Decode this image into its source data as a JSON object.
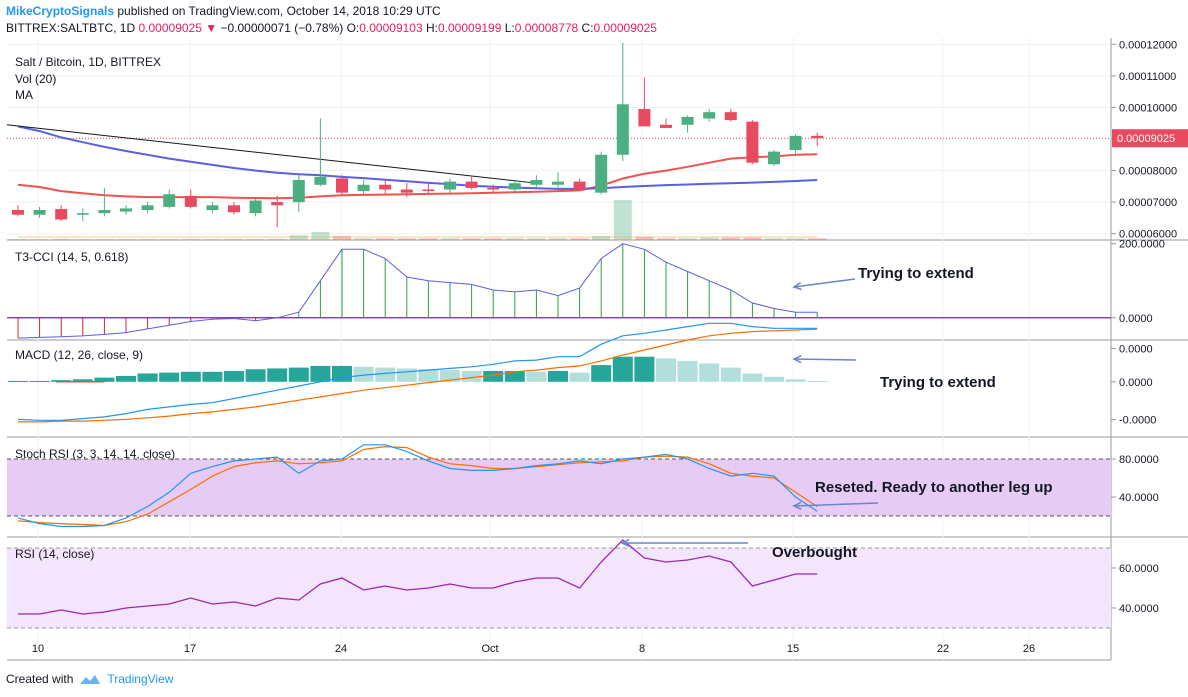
{
  "header": {
    "author": "MikeCryptoSignals",
    "published": "published on TradingView.com, October 14, 2018 10:29 UTC",
    "symbol": "BITTREX:SALTBTC, 1D",
    "last": "0.00009025",
    "change": "−0.00000071 (−0.78%)",
    "o_label": "O:",
    "o": "0.00009103",
    "h_label": "H:",
    "h": "0.00009199",
    "l_label": "L:",
    "l": "0.00008778",
    "c_label": "C:",
    "c": "0.00009025"
  },
  "footer": {
    "created_with": "Created with",
    "brand": "TradingView"
  },
  "colors": {
    "up": "#4caf82",
    "down": "#e84a5f",
    "ma_red": "#ef5350",
    "ma_blue": "#5b5fe0",
    "accent": "#2196f3"
  },
  "x_axis_labels": [
    "10",
    "17",
    "24",
    "Oct",
    "8",
    "15",
    "22",
    "26"
  ],
  "annotations": [
    {
      "text": "Trying to extend"
    },
    {
      "text": "Trying to extend"
    },
    {
      "text": "Reseted. Ready to another leg up"
    },
    {
      "text": "Overbought"
    }
  ],
  "chart_data": [
    {
      "type": "candlestick",
      "title": "Salt / Bitcoin, 1D, BITTREX",
      "indicators": [
        "Vol (20)",
        "MA"
      ],
      "ylim": [
        5.8e-05,
        0.000122
      ],
      "y_ticks": [
        "0.00012000",
        "0.00011000",
        "0.00010000",
        "0.00009000",
        "0.00008000",
        "0.00007000",
        "0.00006000"
      ],
      "last_price_label": "0.00009025",
      "candles": [
        {
          "o": 6.75e-05,
          "h": 6.9e-05,
          "l": 6.55e-05,
          "c": 6.6e-05
        },
        {
          "o": 6.6e-05,
          "h": 6.85e-05,
          "l": 6.5e-05,
          "c": 6.75e-05
        },
        {
          "o": 6.78e-05,
          "h": 6.9e-05,
          "l": 6.4e-05,
          "c": 6.45e-05
        },
        {
          "o": 6.6e-05,
          "h": 6.8e-05,
          "l": 6.4e-05,
          "c": 6.65e-05
        },
        {
          "o": 6.65e-05,
          "h": 7.45e-05,
          "l": 6.55e-05,
          "c": 6.75e-05
        },
        {
          "o": 6.7e-05,
          "h": 6.9e-05,
          "l": 6.6e-05,
          "c": 6.8e-05
        },
        {
          "o": 6.75e-05,
          "h": 7e-05,
          "l": 6.65e-05,
          "c": 6.9e-05
        },
        {
          "o": 6.85e-05,
          "h": 7.4e-05,
          "l": 6.8e-05,
          "c": 7.25e-05
        },
        {
          "o": 7.2e-05,
          "h": 7.4e-05,
          "l": 6.8e-05,
          "c": 6.85e-05
        },
        {
          "o": 6.75e-05,
          "h": 7e-05,
          "l": 6.65e-05,
          "c": 6.9e-05
        },
        {
          "o": 6.9e-05,
          "h": 7e-05,
          "l": 6.6e-05,
          "c": 6.68e-05
        },
        {
          "o": 6.65e-05,
          "h": 7.1e-05,
          "l": 6.55e-05,
          "c": 7.05e-05
        },
        {
          "o": 7e-05,
          "h": 7.2e-05,
          "l": 6.2e-05,
          "c": 6.9e-05
        },
        {
          "o": 7e-05,
          "h": 7.85e-05,
          "l": 6.7e-05,
          "c": 7.7e-05
        },
        {
          "o": 7.55e-05,
          "h": 9.65e-05,
          "l": 7.5e-05,
          "c": 7.8e-05
        },
        {
          "o": 7.75e-05,
          "h": 7.85e-05,
          "l": 7.2e-05,
          "c": 7.3e-05
        },
        {
          "o": 7.35e-05,
          "h": 7.7e-05,
          "l": 7.25e-05,
          "c": 7.55e-05
        },
        {
          "o": 7.55e-05,
          "h": 7.7e-05,
          "l": 7.25e-05,
          "c": 7.4e-05
        },
        {
          "o": 7.4e-05,
          "h": 7.6e-05,
          "l": 7.15e-05,
          "c": 7.3e-05
        },
        {
          "o": 7.4e-05,
          "h": 7.6e-05,
          "l": 7.25e-05,
          "c": 7.35e-05
        },
        {
          "o": 7.4e-05,
          "h": 7.75e-05,
          "l": 7.3e-05,
          "c": 7.65e-05
        },
        {
          "o": 7.65e-05,
          "h": 7.8e-05,
          "l": 7.4e-05,
          "c": 7.45e-05
        },
        {
          "o": 7.45e-05,
          "h": 7.55e-05,
          "l": 7.3e-05,
          "c": 7.4e-05
        },
        {
          "o": 7.4e-05,
          "h": 7.65e-05,
          "l": 7.3e-05,
          "c": 7.6e-05
        },
        {
          "o": 7.55e-05,
          "h": 7.85e-05,
          "l": 7.45e-05,
          "c": 7.7e-05
        },
        {
          "o": 7.55e-05,
          "h": 7.95e-05,
          "l": 7.45e-05,
          "c": 7.65e-05
        },
        {
          "o": 7.65e-05,
          "h": 7.75e-05,
          "l": 7.35e-05,
          "c": 7.4e-05
        },
        {
          "o": 7.3e-05,
          "h": 8.6e-05,
          "l": 7.25e-05,
          "c": 8.5e-05
        },
        {
          "o": 8.5e-05,
          "h": 0.0001205,
          "l": 8.3e-05,
          "c": 0.000101
        },
        {
          "o": 9.95e-05,
          "h": 0.0001095,
          "l": 9.4e-05,
          "c": 9.4e-05
        },
        {
          "o": 9.45e-05,
          "h": 9.65e-05,
          "l": 9.35e-05,
          "c": 9.35e-05
        },
        {
          "o": 9.45e-05,
          "h": 9.75e-05,
          "l": 9.2e-05,
          "c": 9.7e-05
        },
        {
          "o": 9.65e-05,
          "h": 9.95e-05,
          "l": 9.55e-05,
          "c": 9.85e-05
        },
        {
          "o": 9.85e-05,
          "h": 9.95e-05,
          "l": 9.55e-05,
          "c": 9.6e-05
        },
        {
          "o": 9.55e-05,
          "h": 9.6e-05,
          "l": 8.2e-05,
          "c": 8.25e-05
        },
        {
          "o": 8.2e-05,
          "h": 8.65e-05,
          "l": 8.15e-05,
          "c": 8.6e-05
        },
        {
          "o": 8.65e-05,
          "h": 9.15e-05,
          "l": 8.45e-05,
          "c": 9.1e-05
        },
        {
          "o": 9.1e-05,
          "h": 9.2e-05,
          "l": 8.78e-05,
          "c": 9.03e-05
        }
      ],
      "volume": [
        0.1,
        0.1,
        0.1,
        0.1,
        0.1,
        0.1,
        0.1,
        0.1,
        0.1,
        0.1,
        0.1,
        0.1,
        0.1,
        0.6,
        1.0,
        0.5,
        0.2,
        0.2,
        0.2,
        0.2,
        0.2,
        0.2,
        0.2,
        0.2,
        0.2,
        0.2,
        0.2,
        0.5,
        5.0,
        0.4,
        0.2,
        0.2,
        0.3,
        0.3,
        0.3,
        0.2,
        0.2,
        0.2
      ],
      "ma_fast": [
        7.55e-05,
        7.48e-05,
        7.35e-05,
        7.28e-05,
        7.22e-05,
        7.18e-05,
        7.16e-05,
        7.16e-05,
        7.16e-05,
        7.16e-05,
        7.14e-05,
        7.13e-05,
        7.12e-05,
        7.14e-05,
        7.18e-05,
        7.22e-05,
        7.23e-05,
        7.24e-05,
        7.25e-05,
        7.26e-05,
        7.27e-05,
        7.28e-05,
        7.3e-05,
        7.31e-05,
        7.33e-05,
        7.35e-05,
        7.37e-05,
        7.52e-05,
        7.75e-05,
        7.9e-05,
        8e-05,
        8.12e-05,
        8.25e-05,
        8.38e-05,
        8.42e-05,
        8.45e-05,
        8.5e-05,
        8.52e-05
      ],
      "ma_slow": [
        9.4e-05,
        9.25e-05,
        9.05e-05,
        8.9e-05,
        8.75e-05,
        8.62e-05,
        8.5e-05,
        8.38e-05,
        8.28e-05,
        8.18e-05,
        8.08e-05,
        8e-05,
        7.93e-05,
        7.88e-05,
        7.85e-05,
        7.8e-05,
        7.76e-05,
        7.71e-05,
        7.66e-05,
        7.61e-05,
        7.57e-05,
        7.52e-05,
        7.49e-05,
        7.46e-05,
        7.44e-05,
        7.42e-05,
        7.42e-05,
        7.44e-05,
        7.48e-05,
        7.51e-05,
        7.54e-05,
        7.56e-05,
        7.58e-05,
        7.6e-05,
        7.62e-05,
        7.64e-05,
        7.67e-05,
        7.7e-05
      ],
      "trendline": [
        [
          0,
          9.45e-05
        ],
        [
          24,
          7.6e-05
        ]
      ]
    },
    {
      "type": "histogram+line",
      "title": "T3-CCI (14, 5, 0.618)",
      "ylim": [
        -60,
        210
      ],
      "y_ticks": [
        "200.0000",
        "0.0000"
      ],
      "values": [
        -55,
        -53,
        -51,
        -49,
        -45,
        -40,
        -30,
        -20,
        -10,
        -4,
        -2,
        -8,
        0,
        15,
        100,
        185,
        185,
        160,
        110,
        100,
        95,
        90,
        75,
        70,
        75,
        60,
        80,
        160,
        200,
        185,
        150,
        125,
        100,
        75,
        40,
        25,
        15,
        15
      ]
    },
    {
      "type": "macd",
      "title": "MACD (12, 26, close, 9)",
      "ylim": [
        -6.6e-06,
        5e-06
      ],
      "y_ticks": [
        "0.0000",
        "0.0000",
        "-0.0000"
      ],
      "macd": [
        -4.5e-06,
        -4.6e-06,
        -4.6e-06,
        -4.4e-06,
        -4.2e-06,
        -3.8e-06,
        -3.3e-06,
        -3e-06,
        -2.7e-06,
        -2.5e-06,
        -2e-06,
        -1.5e-06,
        -1e-06,
        -5e-07,
        0.0,
        5e-07,
        8e-07,
        1e-06,
        1.2e-06,
        1.4e-06,
        1.6e-06,
        1.8e-06,
        2.1e-06,
        2.5e-06,
        2.6e-06,
        3e-06,
        3e-06,
        4.5e-06,
        5.5e-06,
        5.8e-06,
        6.2e-06,
        6.6e-06,
        7e-06,
        7e-06,
        6.6e-06,
        6.4e-06,
        6.4e-06,
        6.4e-06
      ],
      "signal": [
        -4.8e-06,
        -4.8e-06,
        -4.7e-06,
        -4.7e-06,
        -4.6e-06,
        -4.5e-06,
        -4.3e-06,
        -4.1e-06,
        -3.8e-06,
        -3.6e-06,
        -3.3e-06,
        -3e-06,
        -2.6e-06,
        -2.2e-06,
        -1.8e-06,
        -1.4e-06,
        -1e-06,
        -7e-07,
        -4e-07,
        -1e-07,
        2e-07,
        5e-07,
        8e-07,
        1.2e-06,
        1.4e-06,
        1.7e-06,
        1.9e-06,
        2.5e-06,
        3.2e-06,
        3.8e-06,
        4.4e-06,
        5e-06,
        5.5e-06,
        5.8e-06,
        6e-06,
        6.1e-06,
        6.2e-06,
        6.3e-06
      ],
      "histogram": [
        1e-07,
        1e-07,
        2e-07,
        3e-07,
        5e-07,
        7e-07,
        1e-06,
        1.1e-06,
        1.2e-06,
        1.2e-06,
        1.3e-06,
        1.5e-06,
        1.6e-06,
        1.7e-06,
        1.9e-06,
        1.9e-06,
        1.8e-06,
        1.7e-06,
        1.6e-06,
        1.5e-06,
        1.4e-06,
        1.3e-06,
        1.3e-06,
        1.3e-06,
        1.2e-06,
        1.3e-06,
        1.1e-06,
        2e-06,
        3e-06,
        3e-06,
        2.8e-06,
        2.5e-06,
        2.2e-06,
        1.7e-06,
        1e-06,
        6e-07,
        3e-07,
        1e-07
      ]
    },
    {
      "type": "stoch_rsi",
      "title": "Stoch RSI (3, 3, 14, 14, close)",
      "ylim": [
        0,
        100
      ],
      "y_ticks": [
        "80.0000",
        "40.0000"
      ],
      "band": [
        20,
        80
      ],
      "k": [
        18,
        12,
        9,
        9,
        10,
        18,
        30,
        45,
        65,
        72,
        78,
        80,
        82,
        65,
        78,
        80,
        95,
        95,
        88,
        78,
        70,
        68,
        68,
        70,
        73,
        75,
        78,
        75,
        80,
        82,
        85,
        80,
        70,
        62,
        65,
        62,
        40,
        25
      ],
      "d": [
        15,
        13,
        12,
        11,
        10,
        14,
        22,
        35,
        48,
        62,
        72,
        76,
        78,
        75,
        76,
        78,
        90,
        93,
        92,
        82,
        75,
        73,
        70,
        70,
        72,
        74,
        76,
        77,
        78,
        82,
        83,
        82,
        75,
        65,
        62,
        60,
        45,
        30
      ]
    },
    {
      "type": "line",
      "title": "RSI (14, close)",
      "ylim": [
        25,
        78
      ],
      "y_ticks": [
        "60.0000",
        "40.0000"
      ],
      "band": [
        30,
        70
      ],
      "values": [
        37,
        37,
        39,
        37,
        38,
        40,
        41,
        42,
        45,
        42,
        43,
        41,
        45,
        44,
        52,
        55,
        49,
        51,
        49,
        50,
        52,
        50,
        50,
        53,
        55,
        55,
        50,
        63,
        74,
        65,
        63,
        64,
        66,
        63,
        51,
        54,
        57,
        57
      ]
    }
  ]
}
